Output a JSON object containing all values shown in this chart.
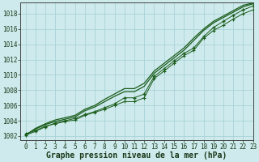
{
  "background_color": "#ceeaec",
  "grid_color": "#a8d4d8",
  "line_color": "#1a5c1a",
  "xlabel": "Graphe pression niveau de la mer (hPa)",
  "xlabel_fontsize": 7,
  "xlim": [
    -0.5,
    23
  ],
  "ylim": [
    1001.5,
    1019.5
  ],
  "yticks": [
    1002,
    1004,
    1006,
    1008,
    1010,
    1012,
    1014,
    1016,
    1018
  ],
  "xticks": [
    0,
    1,
    2,
    3,
    4,
    5,
    6,
    7,
    8,
    9,
    10,
    11,
    12,
    13,
    14,
    15,
    16,
    17,
    18,
    19,
    20,
    21,
    22,
    23
  ],
  "line1_x": [
    0,
    1,
    2,
    3,
    4,
    5,
    6,
    7,
    8,
    9,
    10,
    11,
    12,
    13,
    14,
    15,
    16,
    17,
    18,
    19,
    20,
    21,
    22,
    23
  ],
  "line1_y": [
    1002.1,
    1002.9,
    1003.5,
    1003.9,
    1004.2,
    1004.5,
    1005.3,
    1005.8,
    1006.5,
    1007.2,
    1007.8,
    1007.8,
    1008.5,
    1010.2,
    1011.2,
    1012.2,
    1013.2,
    1014.5,
    1015.8,
    1016.8,
    1017.5,
    1018.2,
    1018.9,
    1019.3
  ],
  "line2_x": [
    0,
    1,
    2,
    3,
    4,
    5,
    6,
    7,
    8,
    9,
    10,
    11,
    12,
    13,
    14,
    15,
    16,
    17,
    18,
    19,
    20,
    21,
    22,
    23
  ],
  "line2_y": [
    1002.1,
    1003.0,
    1003.6,
    1004.1,
    1004.4,
    1004.7,
    1005.5,
    1006.0,
    1006.8,
    1007.5,
    1008.2,
    1008.2,
    1008.9,
    1010.5,
    1011.5,
    1012.5,
    1013.5,
    1014.8,
    1016.0,
    1017.0,
    1017.7,
    1018.4,
    1019.1,
    1019.4
  ],
  "line3_x": [
    0,
    1,
    2,
    3,
    4,
    5,
    6,
    7,
    8,
    9,
    10,
    11,
    12,
    13,
    14,
    15,
    16,
    17,
    18,
    19,
    20,
    21,
    22,
    23
  ],
  "line3_y": [
    1002.1,
    1002.6,
    1003.2,
    1003.7,
    1004.0,
    1004.3,
    1004.8,
    1005.2,
    1005.7,
    1006.2,
    1007.0,
    1007.0,
    1007.5,
    1009.8,
    1010.8,
    1011.8,
    1012.8,
    1013.5,
    1015.0,
    1016.2,
    1017.0,
    1017.8,
    1018.5,
    1019.0
  ],
  "line4_x": [
    0,
    1,
    2,
    3,
    4,
    5,
    6,
    7,
    8,
    9,
    10,
    11,
    12,
    13,
    14,
    15,
    16,
    17,
    18,
    19,
    20,
    21,
    22,
    23
  ],
  "line4_y": [
    1002.3,
    1002.7,
    1003.3,
    1003.6,
    1003.9,
    1004.1,
    1004.7,
    1005.1,
    1005.5,
    1006.0,
    1006.5,
    1006.5,
    1007.0,
    1009.5,
    1010.5,
    1011.5,
    1012.5,
    1013.2,
    1014.8,
    1015.8,
    1016.5,
    1017.3,
    1018.0,
    1018.5
  ]
}
